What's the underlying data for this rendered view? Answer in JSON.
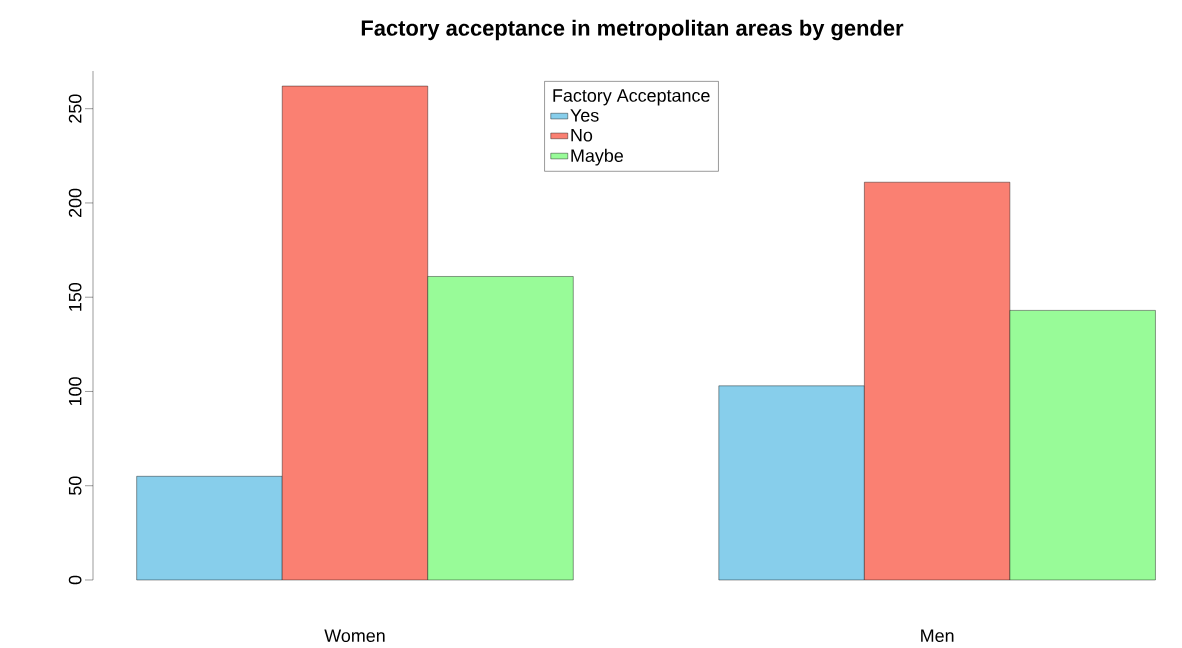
{
  "chart_data": {
    "type": "bar",
    "title": "Factory acceptance in metropolitan areas by gender",
    "categories": [
      "Women",
      "Men"
    ],
    "series": [
      {
        "name": "Yes",
        "color": "#87ceeb",
        "values": [
          55,
          103
        ]
      },
      {
        "name": "No",
        "color": "#fa8072",
        "values": [
          262,
          211
        ]
      },
      {
        "name": "Maybe",
        "color": "#98fb98",
        "values": [
          161,
          143
        ]
      }
    ],
    "legend_title": "Factory Acceptance",
    "legend": "top",
    "ylim": [
      0,
      270
    ],
    "yticks": [
      0,
      50,
      100,
      150,
      200,
      250
    ],
    "grid": false
  }
}
